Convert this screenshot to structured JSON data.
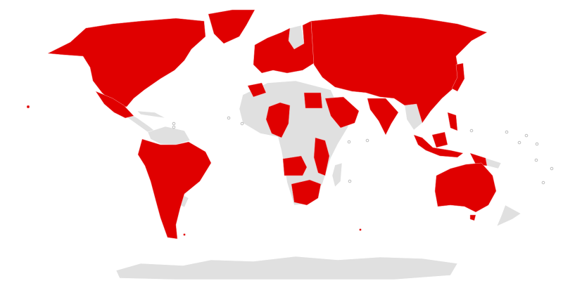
{
  "map": {
    "type": "choropleth-world",
    "projection": "equirectangular-like",
    "highlight_color": "#e00000",
    "base_color": "#e0e0e0",
    "background_color": "#ffffff",
    "legend": null
  }
}
